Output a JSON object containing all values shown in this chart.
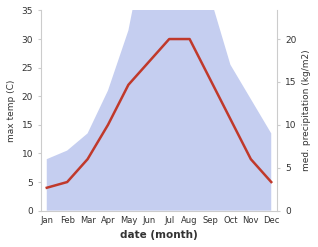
{
  "months": [
    "Jan",
    "Feb",
    "Mar",
    "Apr",
    "May",
    "Jun",
    "Jul",
    "Aug",
    "Sep",
    "Oct",
    "Nov",
    "Dec"
  ],
  "temperature": [
    4,
    5,
    9,
    15,
    22,
    26,
    30,
    30,
    23,
    16,
    9,
    5
  ],
  "precipitation": [
    6,
    7,
    9,
    14,
    21,
    33,
    25,
    34,
    25,
    17,
    13,
    9
  ],
  "temp_color": "#c0392b",
  "precip_fill_color": "#c5cef0",
  "ylim_temp": [
    0,
    35
  ],
  "ylim_precip_max": 23.33,
  "right_yticks": [
    0,
    5,
    10,
    15,
    20
  ],
  "left_yticks": [
    0,
    5,
    10,
    15,
    20,
    25,
    30,
    35
  ],
  "xlabel": "date (month)",
  "ylabel_left": "max temp (C)",
  "ylabel_right": "med. precipitation (kg/m2)",
  "temp_linewidth": 1.8,
  "bg_color": "#ffffff"
}
